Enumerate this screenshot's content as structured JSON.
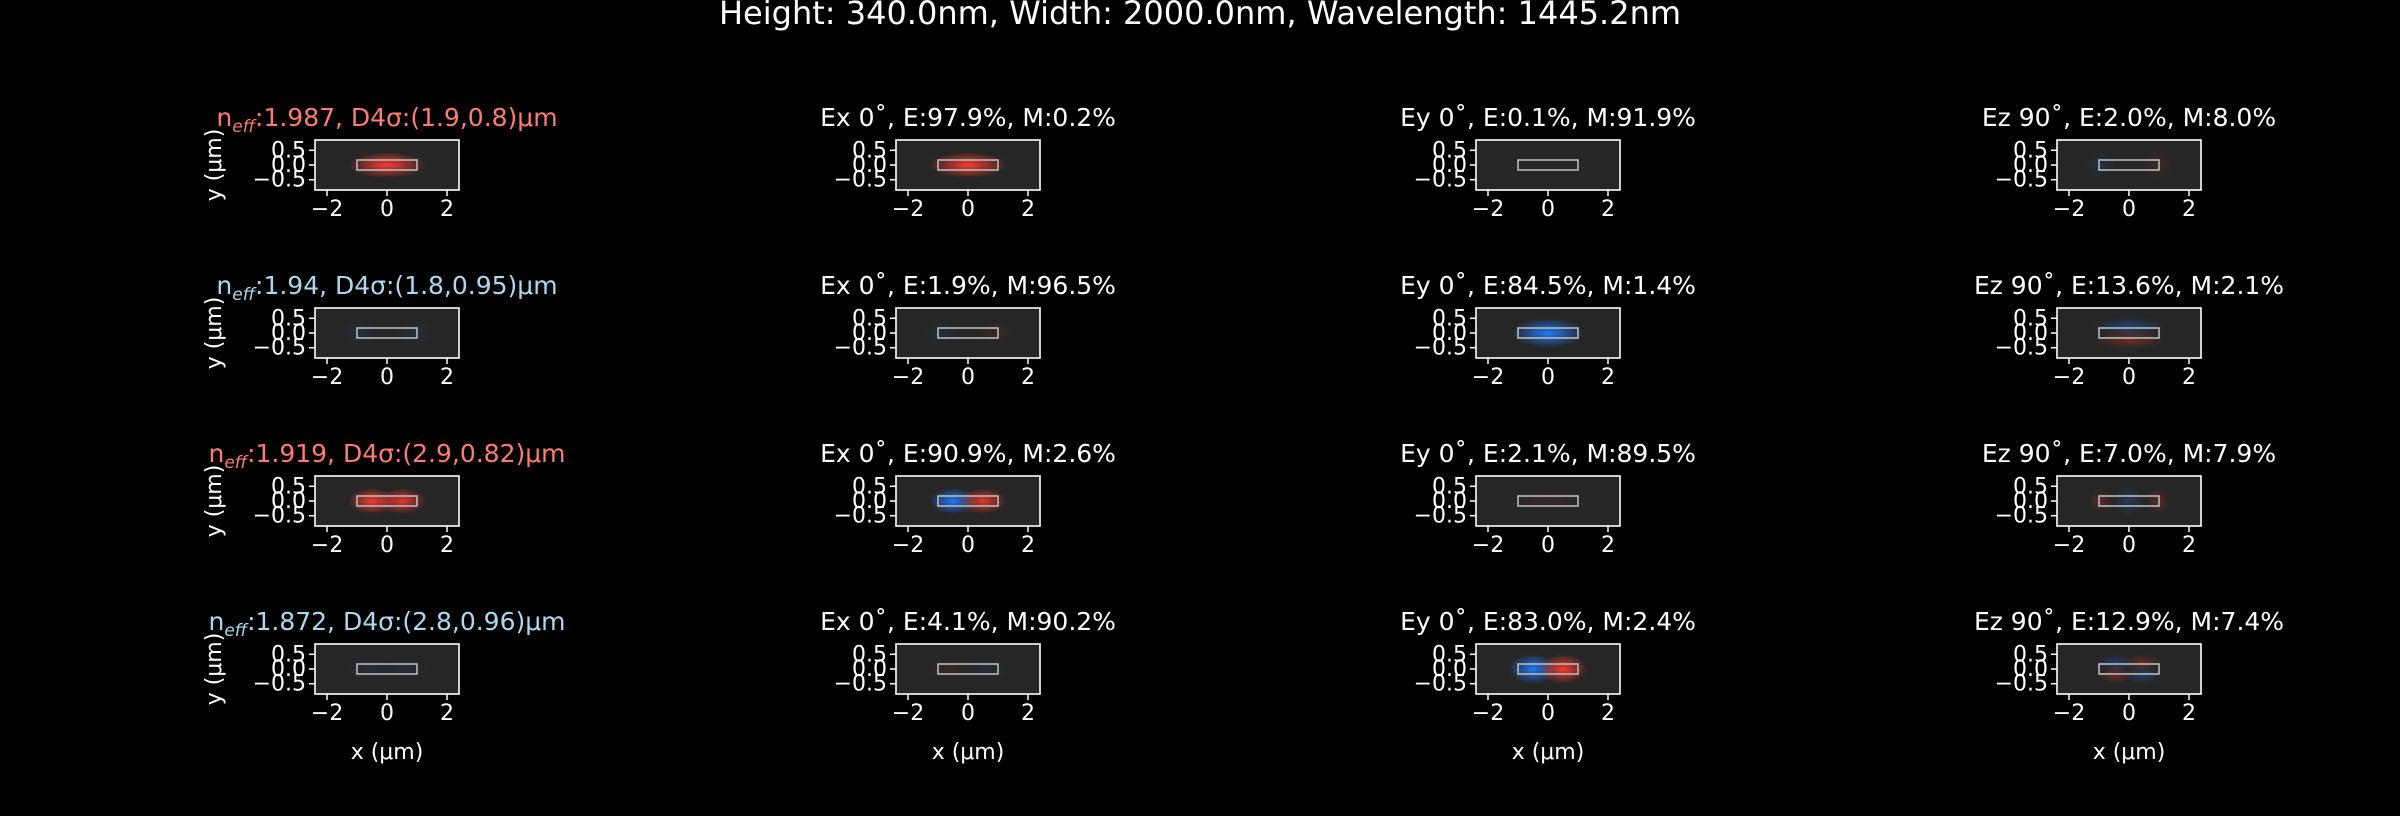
{
  "suptitle": "Height: 340.0nm, Width: 2000.0nm, Wavelength: 1445.2nm",
  "colors": {
    "background": "#000000",
    "te_mode_title": "#ff7b72",
    "tm_mode_title": "#add8ef",
    "positive_field": "#ff3b2f",
    "negative_field": "#1e7bff",
    "axes_face": "#262626",
    "waveguide_outline": "#b9b9b9"
  },
  "chart_data": {
    "type": "heatmap",
    "description_rows": "mode index",
    "description_cols": "field component",
    "xlabel": "x (μm)",
    "ylabel": "y (μm)",
    "xlim": [
      -2.4,
      2.4
    ],
    "ylim": [
      -0.85,
      0.85
    ],
    "x_ticks": [
      "−2",
      "0",
      "2"
    ],
    "x_tick_values": [
      -2,
      0,
      2
    ],
    "y_ticks": [
      "0.5",
      "0.0",
      "−0.5"
    ],
    "y_tick_values": [
      0.5,
      0.0,
      -0.5
    ],
    "waveguide_core": {
      "x": [
        -1.0,
        1.0
      ],
      "y": [
        -0.17,
        0.17
      ]
    },
    "modes": [
      {
        "neff_prefix": "n",
        "neff_sub": "eff",
        "neff_rest": ":1.987, D4σ:(1.9,0.8)μm",
        "polarization": "TE",
        "panels": [
          {
            "title": "Ex 0˚, E:97.9%, M:0.2%",
            "lobes": [
              {
                "x": 0,
                "y": 0,
                "sx": 0.65,
                "sy": 0.22,
                "amp": 1.0
              }
            ]
          },
          {
            "title": "Ey 0˚, E:0.1%, M:91.9%",
            "lobes": []
          },
          {
            "title": "Ez 90˚, E:2.0%, M:8.0%",
            "lobes": [
              {
                "x": -0.95,
                "y": 0,
                "sx": 0.25,
                "sy": 0.25,
                "amp": -0.12
              },
              {
                "x": 0.95,
                "y": 0,
                "sx": 0.25,
                "sy": 0.25,
                "amp": 0.12
              }
            ]
          }
        ]
      },
      {
        "neff_prefix": "n",
        "neff_sub": "eff",
        "neff_rest": ":1.94, D4σ:(1.8,0.95)μm",
        "polarization": "TM",
        "panels": [
          {
            "title": "Ex 0˚, E:1.9%, M:96.5%",
            "lobes": [
              {
                "x": -0.9,
                "y": 0,
                "sx": 0.3,
                "sy": 0.22,
                "amp": -0.1
              },
              {
                "x": 0.9,
                "y": 0,
                "sx": 0.3,
                "sy": 0.22,
                "amp": 0.1
              }
            ]
          },
          {
            "title": "Ey 0˚, E:84.5%, M:1.4%",
            "lobes": [
              {
                "x": 0,
                "y": 0,
                "sx": 0.6,
                "sy": 0.25,
                "amp": -1.0
              }
            ]
          },
          {
            "title": "Ez 90˚, E:13.6%, M:2.1%",
            "lobes": [
              {
                "x": 0,
                "y": 0.22,
                "sx": 0.6,
                "sy": 0.16,
                "amp": -0.35
              },
              {
                "x": 0,
                "y": -0.22,
                "sx": 0.6,
                "sy": 0.16,
                "amp": 0.35
              }
            ]
          }
        ]
      },
      {
        "neff_prefix": "n",
        "neff_sub": "eff",
        "neff_rest": ":1.919, D4σ:(2.9,0.82)μm",
        "polarization": "TE",
        "panels": [
          {
            "title": "Ex 0˚, E:90.9%, M:2.6%",
            "lobes": [
              {
                "x": -0.5,
                "y": 0,
                "sx": 0.4,
                "sy": 0.22,
                "amp": -1.0
              },
              {
                "x": 0.5,
                "y": 0,
                "sx": 0.4,
                "sy": 0.22,
                "amp": 0.9
              }
            ]
          },
          {
            "title": "Ey 0˚, E:2.1%, M:89.5%",
            "lobes": [
              {
                "x": 0,
                "y": 0,
                "sx": 0.7,
                "sy": 0.2,
                "amp": 0.08
              }
            ]
          },
          {
            "title": "Ez 90˚, E:7.0%, M:7.9%",
            "lobes": [
              {
                "x": -0.95,
                "y": 0,
                "sx": 0.2,
                "sy": 0.2,
                "amp": 0.25
              },
              {
                "x": 0,
                "y": 0,
                "sx": 0.25,
                "sy": 0.25,
                "amp": -0.25
              },
              {
                "x": 0.95,
                "y": 0,
                "sx": 0.2,
                "sy": 0.2,
                "amp": 0.25
              }
            ]
          }
        ]
      },
      {
        "neff_prefix": "n",
        "neff_sub": "eff",
        "neff_rest": ":1.872, D4σ:(2.8,0.96)μm",
        "polarization": "TM",
        "panels": [
          {
            "title": "Ex 0˚, E:4.1%, M:90.2%",
            "lobes": [
              {
                "x": -0.6,
                "y": 0,
                "sx": 0.4,
                "sy": 0.2,
                "amp": 0.08
              },
              {
                "x": 0.6,
                "y": 0,
                "sx": 0.4,
                "sy": 0.2,
                "amp": -0.08
              }
            ]
          },
          {
            "title": "Ey 0˚, E:83.0%, M:2.4%",
            "lobes": [
              {
                "x": -0.5,
                "y": 0,
                "sx": 0.4,
                "sy": 0.25,
                "amp": -1.0
              },
              {
                "x": 0.5,
                "y": 0,
                "sx": 0.4,
                "sy": 0.25,
                "amp": 1.0
              }
            ]
          },
          {
            "title": "Ez 90˚, E:12.9%, M:7.4%",
            "lobes": [
              {
                "x": -0.45,
                "y": 0.2,
                "sx": 0.3,
                "sy": 0.15,
                "amp": -0.3
              },
              {
                "x": 0.45,
                "y": 0.2,
                "sx": 0.3,
                "sy": 0.15,
                "amp": 0.3
              },
              {
                "x": -0.45,
                "y": -0.2,
                "sx": 0.3,
                "sy": 0.15,
                "amp": 0.3
              },
              {
                "x": 0.45,
                "y": -0.2,
                "sx": 0.3,
                "sy": 0.15,
                "amp": -0.3
              }
            ]
          }
        ]
      }
    ]
  }
}
